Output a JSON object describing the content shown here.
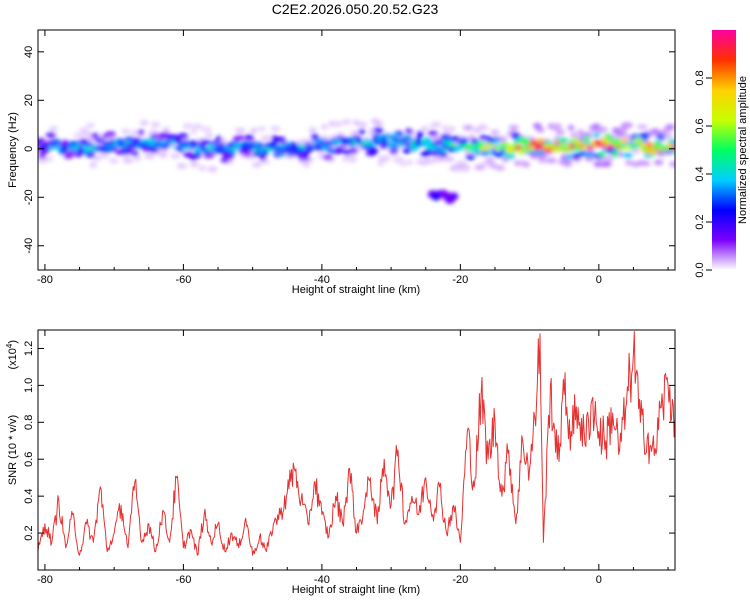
{
  "title": "C2E2.2026.050.20.52.G23",
  "chart_data": [
    {
      "type": "heatmap",
      "xlabel": "Height of straight line (km)",
      "ylabel": "Frequency (Hz)",
      "xlim": [
        -81,
        11
      ],
      "ylim": [
        -50,
        49
      ],
      "x_ticks": [
        -80,
        -60,
        -40,
        -20,
        0
      ],
      "x_tick_labels": [
        "-80",
        "-60",
        "-40",
        "-20",
        "0"
      ],
      "y_ticks": [
        -40,
        -20,
        0,
        20,
        40
      ],
      "y_tick_labels": [
        "-40",
        "-20",
        "0",
        "20",
        "40"
      ],
      "colorbar": {
        "label": "Normalized spectral amplitude",
        "range": [
          0,
          1
        ],
        "ticks": [
          0.0,
          0.2,
          0.4,
          0.6,
          0.8
        ],
        "tick_labels": [
          "0.0",
          "0.2",
          "0.4",
          "0.6",
          "0.8"
        ],
        "colormap": [
          "#ffffff",
          "#7b00ff",
          "#0000ff",
          "#00d0ff",
          "#00ff60",
          "#c8ff00",
          "#ffd000",
          "#ff3000",
          "#ff00a0"
        ]
      },
      "ridge": {
        "x": [
          -80,
          -75,
          -70,
          -65,
          -60,
          -55,
          -50,
          -45,
          -40,
          -35,
          -30,
          -25,
          -20,
          -15,
          -10,
          -5,
          0,
          5,
          10
        ],
        "center_frequency": [
          1,
          0,
          2,
          3,
          1,
          0,
          0,
          0,
          1,
          3,
          3,
          2,
          0,
          1,
          1,
          1,
          2,
          1,
          1
        ],
        "intensity": [
          0.25,
          0.3,
          0.3,
          0.3,
          0.28,
          0.3,
          0.32,
          0.3,
          0.3,
          0.32,
          0.35,
          0.35,
          0.45,
          0.5,
          0.8,
          0.7,
          0.85,
          0.6,
          0.75
        ]
      },
      "secondary_blob": {
        "x": [
          -24,
          -21
        ],
        "frequency": -20,
        "intensity": 0.1
      }
    },
    {
      "type": "line",
      "xlabel": "Height of straight line (km)",
      "ylabel": "SNR (10 * v/v)",
      "y_multiplier_label": "(x10",
      "y_multiplier_exponent": "4",
      "y_multiplier_close": ")",
      "xlim": [
        -81,
        11
      ],
      "ylim": [
        0,
        1.3
      ],
      "x_ticks": [
        -80,
        -60,
        -40,
        -20,
        0
      ],
      "x_tick_labels": [
        "-80",
        "-60",
        "-40",
        "-20",
        "0"
      ],
      "y_ticks": [
        0.2,
        0.4,
        0.6,
        0.8,
        1.0,
        1.2
      ],
      "y_tick_labels": [
        "0.2",
        "0.4",
        "0.6",
        "0.8",
        "1.0",
        "1.2"
      ],
      "line_color": "#e83030",
      "series": [
        {
          "x": [
            -81,
            -80,
            -79,
            -78,
            -77,
            -76,
            -75,
            -74,
            -73,
            -72,
            -71,
            -70,
            -69,
            -68,
            -67,
            -66,
            -65,
            -64,
            -63,
            -62,
            -61,
            -60,
            -59,
            -58,
            -57,
            -56,
            -55,
            -54,
            -53,
            -52,
            -51,
            -50,
            -49,
            -48,
            -47,
            -46,
            -45,
            -44,
            -43,
            -42,
            -41,
            -40,
            -39,
            -38,
            -37,
            -36,
            -35,
            -34,
            -33,
            -32,
            -31,
            -30,
            -29,
            -28,
            -27,
            -26,
            -25,
            -24,
            -23,
            -22,
            -21,
            -20,
            -19,
            -18,
            -17,
            -16,
            -15,
            -14,
            -13,
            -12,
            -11,
            -10,
            -9,
            -8.5,
            -8,
            -7,
            -6,
            -5,
            -4,
            -3,
            -2,
            -1,
            0,
            1,
            2,
            3,
            4,
            5,
            6,
            7,
            8,
            9,
            10,
            11
          ],
          "y": [
            0.1,
            0.25,
            0.15,
            0.38,
            0.12,
            0.3,
            0.08,
            0.25,
            0.15,
            0.45,
            0.1,
            0.2,
            0.35,
            0.12,
            0.48,
            0.15,
            0.25,
            0.1,
            0.32,
            0.15,
            0.5,
            0.12,
            0.22,
            0.08,
            0.3,
            0.15,
            0.25,
            0.1,
            0.2,
            0.12,
            0.28,
            0.08,
            0.18,
            0.1,
            0.25,
            0.3,
            0.42,
            0.55,
            0.38,
            0.25,
            0.48,
            0.3,
            0.18,
            0.4,
            0.25,
            0.55,
            0.2,
            0.32,
            0.5,
            0.25,
            0.6,
            0.35,
            0.65,
            0.25,
            0.4,
            0.3,
            0.5,
            0.3,
            0.45,
            0.2,
            0.35,
            0.15,
            0.75,
            0.45,
            0.95,
            0.6,
            0.8,
            0.4,
            0.65,
            0.25,
            0.7,
            0.55,
            0.9,
            1.28,
            0.15,
            1.0,
            0.6,
            0.95,
            0.75,
            0.88,
            0.68,
            0.92,
            0.75,
            0.7,
            0.85,
            0.65,
            0.9,
            1.18,
            0.8,
            0.72,
            0.62,
            0.88,
            1.0,
            0.82
          ]
        }
      ]
    }
  ]
}
